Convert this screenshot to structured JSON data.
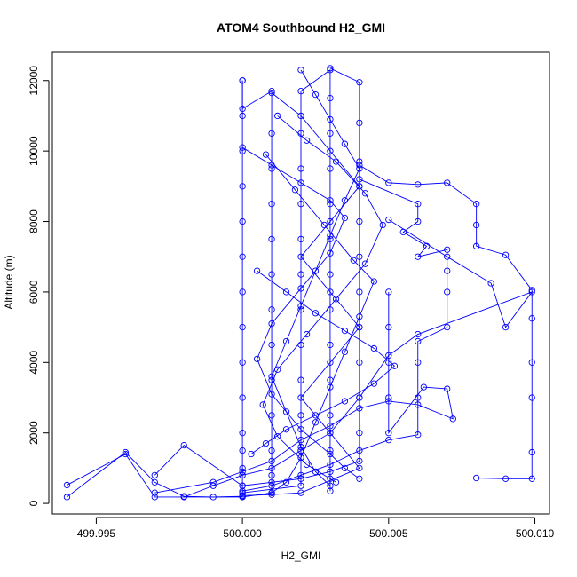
{
  "chart_data": {
    "type": "line",
    "title": "ATOM4 Southbound H2_GMI",
    "xlabel": "H2_GMI",
    "ylabel": "Altitude (m)",
    "xlim": [
      499.9935,
      500.0105
    ],
    "ylim": [
      -300,
      12800
    ],
    "x_ticks": [
      499.995,
      500.0,
      500.005,
      500.01
    ],
    "x_tick_labels": [
      "499.995",
      "500.000",
      "500.005",
      "500.010"
    ],
    "y_ticks": [
      0,
      2000,
      4000,
      6000,
      8000,
      10000,
      12000
    ],
    "y_tick_labels": [
      "0",
      "2000",
      "4000",
      "6000",
      "8000",
      "10000",
      "12000"
    ],
    "grid": false,
    "color": "#0000ff",
    "marker": "open-circle",
    "series": [
      {
        "values": [
          [
            499.994,
            180
          ],
          [
            499.996,
            1450
          ],
          [
            499.997,
            600
          ],
          [
            499.998,
            200
          ],
          [
            499.999,
            180
          ],
          [
            500.0,
            200
          ],
          [
            500.0,
            500
          ],
          [
            500.0,
            1000
          ],
          [
            500.0,
            1500
          ],
          [
            500.0,
            2000
          ],
          [
            500.0,
            3000
          ],
          [
            500.0,
            4000
          ],
          [
            500.0,
            5000
          ],
          [
            500.0,
            6000
          ],
          [
            500.0,
            7000
          ],
          [
            500.0,
            8000
          ],
          [
            500.0,
            9000
          ],
          [
            500.0,
            10000
          ],
          [
            500.0,
            11000
          ],
          [
            500.0,
            12000
          ]
        ]
      },
      {
        "values": [
          [
            500.0,
            12000
          ],
          [
            500.0,
            11200
          ],
          [
            500.001,
            11700
          ],
          [
            500.001,
            10500
          ],
          [
            500.001,
            9500
          ],
          [
            500.001,
            8500
          ],
          [
            500.001,
            7500
          ],
          [
            500.001,
            6500
          ],
          [
            500.001,
            5500
          ],
          [
            500.001,
            4500
          ],
          [
            500.001,
            3500
          ],
          [
            500.001,
            2500
          ],
          [
            500.001,
            1500
          ],
          [
            500.001,
            800
          ],
          [
            500.001,
            300
          ],
          [
            500.0,
            180
          ],
          [
            499.997,
            180
          ],
          [
            499.996,
            1400
          ],
          [
            499.994,
            520
          ]
        ]
      },
      {
        "values": [
          [
            500.0,
            300
          ],
          [
            500.002,
            500
          ],
          [
            500.002,
            1500
          ],
          [
            500.002,
            2500
          ],
          [
            500.002,
            3500
          ],
          [
            500.002,
            4500
          ],
          [
            500.002,
            5500
          ],
          [
            500.002,
            6500
          ],
          [
            500.002,
            7500
          ],
          [
            500.002,
            8500
          ],
          [
            500.002,
            9500
          ],
          [
            500.002,
            10500
          ],
          [
            500.002,
            11700
          ],
          [
            500.003,
            12300
          ],
          [
            500.003,
            11500
          ],
          [
            500.003,
            10500
          ],
          [
            500.003,
            9500
          ],
          [
            500.003,
            8500
          ],
          [
            500.003,
            7500
          ],
          [
            500.003,
            6500
          ],
          [
            500.003,
            5500
          ],
          [
            500.003,
            4500
          ],
          [
            500.003,
            3500
          ],
          [
            500.003,
            2500
          ],
          [
            500.003,
            1500
          ],
          [
            500.003,
            700
          ],
          [
            500.003,
            350
          ]
        ]
      },
      {
        "values": [
          [
            500.003,
            12350
          ],
          [
            500.004,
            11950
          ],
          [
            500.004,
            10800
          ],
          [
            500.004,
            9700
          ],
          [
            500.004,
            9000
          ],
          [
            500.004,
            8000
          ],
          [
            500.004,
            7000
          ],
          [
            500.004,
            6000
          ],
          [
            500.004,
            5000
          ],
          [
            500.004,
            4000
          ],
          [
            500.004,
            3000
          ],
          [
            500.004,
            2000
          ],
          [
            500.004,
            1200
          ],
          [
            500.003,
            900
          ],
          [
            500.002,
            700
          ],
          [
            500.001,
            600
          ],
          [
            500.0,
            500
          ],
          [
            499.998,
            1650
          ],
          [
            499.997,
            800
          ]
        ]
      },
      {
        "values": [
          [
            500.004,
            9600
          ],
          [
            500.005,
            9100
          ],
          [
            500.006,
            9050
          ],
          [
            500.007,
            9100
          ],
          [
            500.008,
            8500
          ],
          [
            500.008,
            7900
          ],
          [
            500.008,
            7300
          ],
          [
            500.009,
            7050
          ],
          [
            500.0099,
            6050
          ],
          [
            500.0099,
            5250
          ],
          [
            500.0099,
            4000
          ],
          [
            500.0099,
            3000
          ],
          [
            500.0099,
            1450
          ],
          [
            500.0099,
            700
          ],
          [
            500.009,
            700
          ],
          [
            500.008,
            720
          ]
        ]
      },
      {
        "values": [
          [
            500.004,
            9200
          ],
          [
            500.006,
            8500
          ],
          [
            500.006,
            8000
          ],
          [
            500.0055,
            7700
          ],
          [
            500.0063,
            7300
          ],
          [
            500.006,
            7000
          ],
          [
            500.007,
            7200
          ],
          [
            500.007,
            6600
          ],
          [
            500.007,
            6000
          ],
          [
            500.007,
            5000
          ],
          [
            500.006,
            4600
          ],
          [
            500.006,
            4000
          ],
          [
            500.006,
            3000
          ],
          [
            500.006,
            1950
          ],
          [
            500.005,
            1800
          ],
          [
            500.004,
            1500
          ],
          [
            500.003,
            1100
          ],
          [
            500.002,
            800
          ],
          [
            500.001,
            500
          ],
          [
            500.0,
            350
          ]
        ]
      },
      {
        "values": [
          [
            500.005,
            8050
          ],
          [
            500.007,
            7000
          ],
          [
            500.0085,
            6250
          ],
          [
            500.009,
            5000
          ],
          [
            500.0099,
            6000
          ],
          [
            500.006,
            4800
          ],
          [
            500.005,
            4200
          ],
          [
            500.004,
            3000
          ],
          [
            500.003,
            2000
          ],
          [
            500.002,
            1500
          ],
          [
            500.001,
            1000
          ],
          [
            500.0,
            800
          ],
          [
            499.999,
            500
          ],
          [
            499.998,
            180
          ]
        ]
      },
      {
        "values": [
          [
            500.005,
            6000
          ],
          [
            500.005,
            5000
          ],
          [
            500.005,
            4000
          ],
          [
            500.005,
            3000
          ],
          [
            500.005,
            2000
          ],
          [
            500.0062,
            3300
          ],
          [
            500.007,
            3250
          ],
          [
            500.0072,
            2400
          ],
          [
            500.006,
            2800
          ],
          [
            500.005,
            2900
          ],
          [
            500.004,
            2700
          ],
          [
            500.003,
            2200
          ],
          [
            500.002,
            1800
          ],
          [
            500.001,
            1200
          ],
          [
            500.0,
            900
          ],
          [
            499.999,
            600
          ],
          [
            499.997,
            300
          ]
        ]
      },
      {
        "values": [
          [
            500.001,
            11650
          ],
          [
            500.002,
            11000
          ],
          [
            500.003,
            10000
          ],
          [
            500.004,
            9000
          ],
          [
            500.003,
            8000
          ],
          [
            500.002,
            7000
          ],
          [
            500.003,
            6000
          ],
          [
            500.004,
            5000
          ],
          [
            500.003,
            4000
          ],
          [
            500.002,
            3000
          ],
          [
            500.003,
            2000
          ],
          [
            500.004,
            1000
          ],
          [
            500.002,
            300
          ],
          [
            500.001,
            250
          ],
          [
            500.0,
            220
          ]
        ]
      },
      {
        "values": [
          [
            500.002,
            12300
          ],
          [
            500.0025,
            11600
          ],
          [
            500.003,
            10900
          ],
          [
            500.0035,
            10200
          ],
          [
            500.004,
            9500
          ],
          [
            500.0035,
            8600
          ],
          [
            500.003,
            7600
          ],
          [
            500.0025,
            6600
          ],
          [
            500.002,
            5600
          ],
          [
            500.0015,
            4600
          ],
          [
            500.001,
            3600
          ],
          [
            500.0015,
            2600
          ],
          [
            500.002,
            1600
          ],
          [
            500.0025,
            900
          ],
          [
            500.003,
            500
          ]
        ]
      },
      {
        "values": [
          [
            500.0,
            10100
          ],
          [
            500.001,
            9600
          ],
          [
            500.002,
            9100
          ],
          [
            500.003,
            8600
          ],
          [
            500.0035,
            8100
          ],
          [
            500.003,
            7100
          ],
          [
            500.002,
            6100
          ],
          [
            500.001,
            5100
          ],
          [
            500.0005,
            4100
          ],
          [
            500.001,
            3100
          ],
          [
            500.002,
            2100
          ],
          [
            500.003,
            1400
          ],
          [
            500.0035,
            1000
          ],
          [
            500.004,
            700
          ]
        ]
      },
      {
        "values": [
          [
            500.0008,
            9900
          ],
          [
            500.0018,
            8900
          ],
          [
            500.0028,
            7900
          ],
          [
            500.0038,
            6900
          ],
          [
            500.0045,
            6300
          ],
          [
            500.004,
            5300
          ],
          [
            500.0035,
            4300
          ],
          [
            500.003,
            3300
          ],
          [
            500.0025,
            2300
          ],
          [
            500.002,
            1300
          ],
          [
            500.0015,
            600
          ],
          [
            500.001,
            300
          ]
        ]
      },
      {
        "values": [
          [
            500.0012,
            11000
          ],
          [
            500.0022,
            10300
          ],
          [
            500.0032,
            9700
          ],
          [
            500.0042,
            8800
          ],
          [
            500.0048,
            7900
          ],
          [
            500.0042,
            6800
          ],
          [
            500.0032,
            5800
          ],
          [
            500.0022,
            4800
          ],
          [
            500.0012,
            3800
          ],
          [
            500.0007,
            2800
          ],
          [
            500.0012,
            1900
          ],
          [
            500.0022,
            1100
          ],
          [
            500.0032,
            600
          ]
        ]
      },
      {
        "values": [
          [
            500.0005,
            6600
          ],
          [
            500.0015,
            6000
          ],
          [
            500.0025,
            5400
          ],
          [
            500.0035,
            4900
          ],
          [
            500.0045,
            4400
          ],
          [
            500.0052,
            3900
          ],
          [
            500.0045,
            3400
          ],
          [
            500.0035,
            2900
          ],
          [
            500.0025,
            2500
          ],
          [
            500.0015,
            2100
          ],
          [
            500.0008,
            1700
          ],
          [
            500.0003,
            1400
          ]
        ]
      }
    ]
  }
}
